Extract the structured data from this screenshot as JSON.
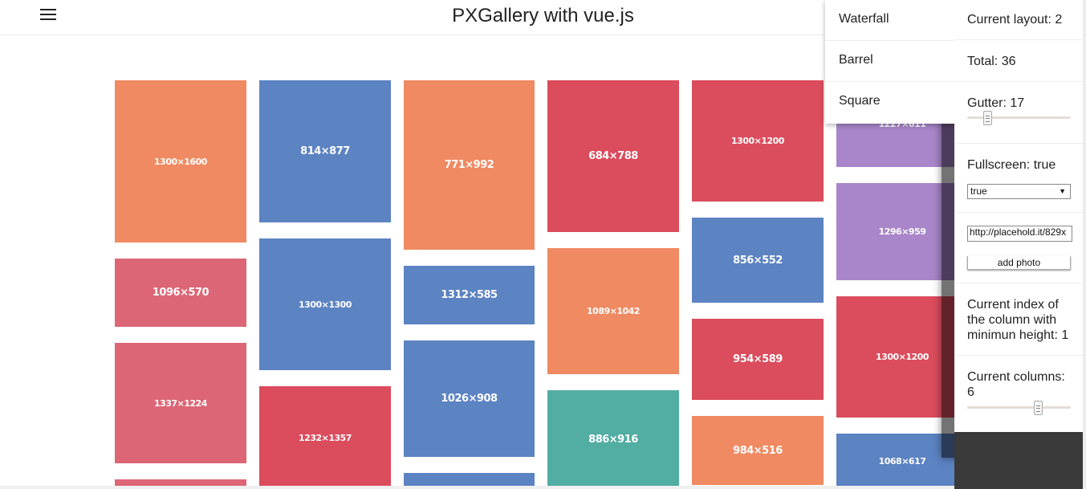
{
  "header": {
    "title": "PXGallery with vue.js"
  },
  "layout_menu": {
    "items": [
      "Waterfall",
      "Barrel",
      "Square"
    ]
  },
  "panel": {
    "current_layout": "Current layout: 2",
    "total": "Total: 36",
    "gutter_label": "Gutter: 17",
    "gutter_value": 17,
    "fullscreen_label": "Fullscreen: true",
    "fullscreen_selected": "true",
    "url_value": "http://placehold.it/829x",
    "add_photo_label": "add photo",
    "min_column_label": "Current index of the column with minimun height: 1",
    "columns_label": "Current columns: 6",
    "columns_value": 6
  },
  "photos": [
    {
      "label": "1300×1600",
      "color": "#ef8a62"
    },
    {
      "label": "1096×570",
      "color": "#dd6676"
    },
    {
      "label": "1337×1224",
      "color": "#dd6676"
    },
    {
      "label": "",
      "color": "#dd6676"
    },
    {
      "label": "814×877",
      "color": "#5c83c2"
    },
    {
      "label": "1300×1300",
      "color": "#5c83c2"
    },
    {
      "label": "1232×1357",
      "color": "#db4c5d"
    },
    {
      "label": "771×992",
      "color": "#ef8a62"
    },
    {
      "label": "1312×585",
      "color": "#5c83c2"
    },
    {
      "label": "1026×908",
      "color": "#5c83c2"
    },
    {
      "label": "",
      "color": "#5c83c2"
    },
    {
      "label": "684×788",
      "color": "#db4c5d"
    },
    {
      "label": "1089×1042",
      "color": "#ef8a62"
    },
    {
      "label": "886×916",
      "color": "#52ada3"
    },
    {
      "label": "1300×1200",
      "color": "#db4c5d"
    },
    {
      "label": "856×552",
      "color": "#5c83c2"
    },
    {
      "label": "954×589",
      "color": "#db4c5d"
    },
    {
      "label": "984×516",
      "color": "#ef8a62"
    },
    {
      "label": "1227×611",
      "color": "#a886c9"
    },
    {
      "label": "1296×959",
      "color": "#a886c9"
    },
    {
      "label": "1300×1200",
      "color": "#db4c5d"
    },
    {
      "label": "1068×617",
      "color": "#5c83c2"
    }
  ]
}
